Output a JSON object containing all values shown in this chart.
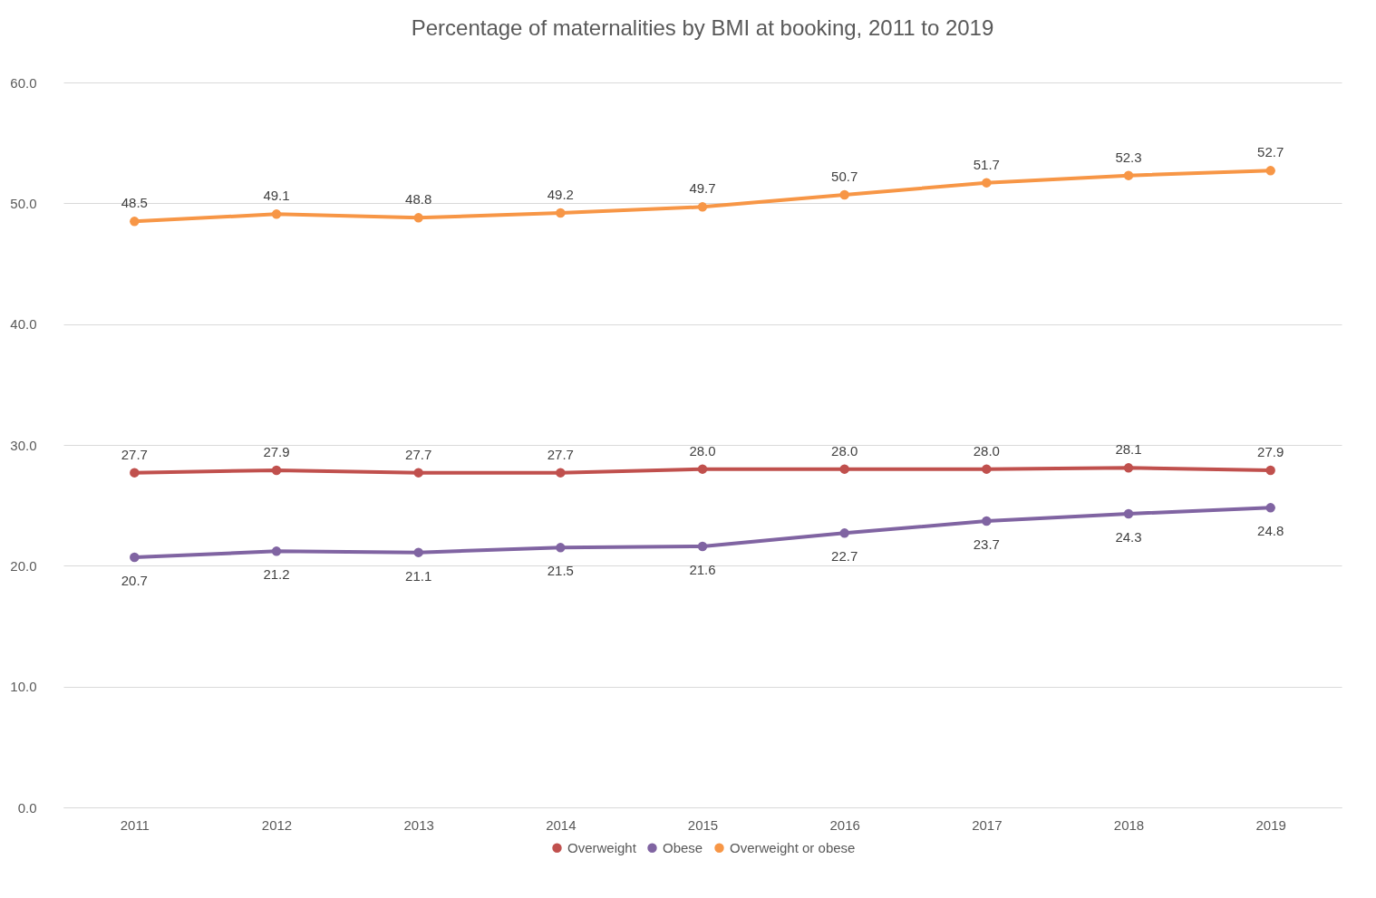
{
  "chart_data": {
    "type": "line",
    "title": "Percentage of maternalities by BMI at booking, 2011 to 2019",
    "categories": [
      "2011",
      "2012",
      "2013",
      "2014",
      "2015",
      "2016",
      "2017",
      "2018",
      "2019"
    ],
    "series": [
      {
        "name": "Overweight",
        "color": "#c0504d",
        "values": [
          27.7,
          27.9,
          27.7,
          27.7,
          28.0,
          28.0,
          28.0,
          28.1,
          27.9
        ],
        "value_labels": [
          "27.7",
          "27.9",
          "27.7",
          "27.7",
          "28.0",
          "28.0",
          "28.0",
          "28.1",
          "27.9"
        ]
      },
      {
        "name": "Obese",
        "color": "#8064a2",
        "values": [
          20.7,
          21.2,
          21.1,
          21.5,
          21.6,
          22.7,
          23.7,
          24.3,
          24.8
        ],
        "value_labels": [
          "20.7",
          "21.2",
          "21.1",
          "21.5",
          "21.6",
          "22.7",
          "23.7",
          "24.3",
          "24.8"
        ]
      },
      {
        "name": "Overweight or obese",
        "color": "#f79646",
        "values": [
          48.5,
          49.1,
          48.8,
          49.2,
          49.7,
          50.7,
          51.7,
          52.3,
          52.7
        ],
        "value_labels": [
          "48.5",
          "49.1",
          "48.8",
          "49.2",
          "49.7",
          "50.7",
          "51.7",
          "52.3",
          "52.7"
        ]
      }
    ],
    "ylim": [
      0,
      60
    ],
    "yticks": [
      {
        "value": 0,
        "label": "0.0"
      },
      {
        "value": 10,
        "label": "10.0"
      },
      {
        "value": 20,
        "label": "20.0"
      },
      {
        "value": 30,
        "label": "30.0"
      },
      {
        "value": 40,
        "label": "40.0"
      },
      {
        "value": 50,
        "label": "50.0"
      },
      {
        "value": 60,
        "label": "60.0"
      }
    ],
    "grid": "y",
    "legend": "bottom",
    "marker": "circle",
    "line_style": "solid"
  }
}
